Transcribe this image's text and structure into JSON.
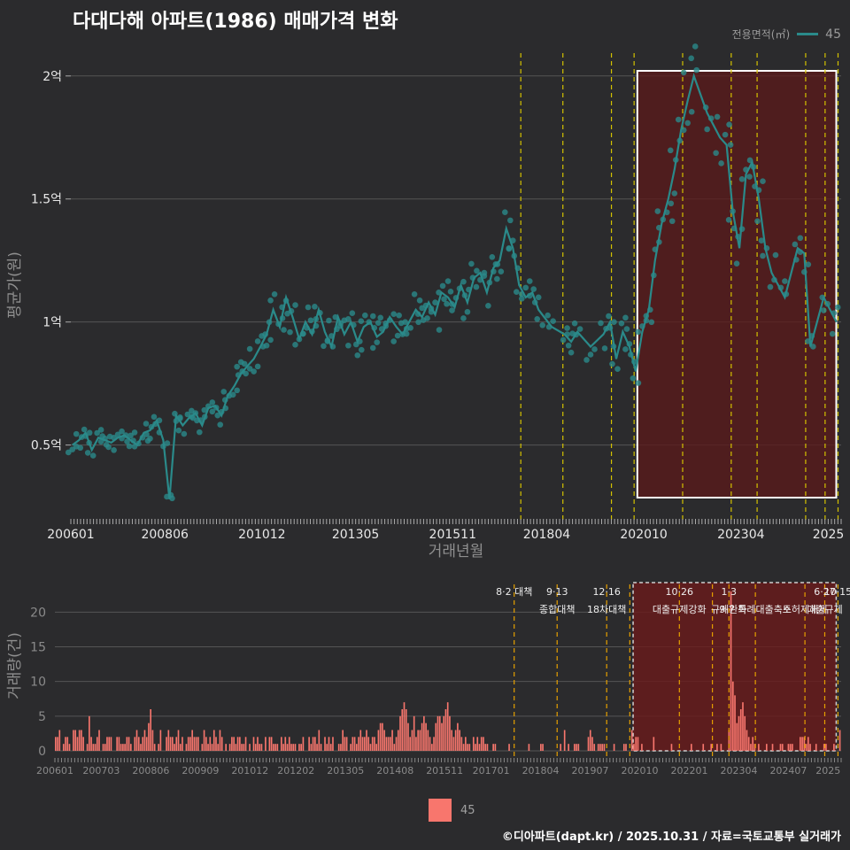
{
  "title": "다대다해 아파트(1986) 매매가격 변화",
  "source": "©디아파트(dapt.kr) / 2025.10.31 / 자료=국토교통부 실거래가",
  "colors": {
    "price": "#2a8a8a",
    "volume": "#f8766d",
    "policy": "#d4c200",
    "box_fill": "#5c1a1a",
    "bg": "#2b2b2d"
  },
  "legend_top": {
    "title": "전용면적(㎡)",
    "label": "45"
  },
  "legend_bottom": {
    "label": "45"
  },
  "chart_data": [
    {
      "type": "line",
      "title": "다대다해 아파트(1986) 매매가격 변화",
      "xlabel": "거래년월",
      "ylabel": "평균가(원)",
      "x_tick_labels": [
        "200601",
        "200806",
        "201012",
        "201305",
        "201511",
        "201804",
        "202010",
        "202304",
        "2025"
      ],
      "y_ticks": [
        {
          "value": 0.5,
          "label": "0.5억"
        },
        {
          "value": 1.0,
          "label": "1억"
        },
        {
          "value": 1.5,
          "label": "1.5억"
        },
        {
          "value": 2.0,
          "label": "2억"
        }
      ],
      "ylim": [
        0.2,
        2.1
      ],
      "x_range": [
        "2006-01",
        "2025-10"
      ],
      "unit": "억원",
      "highlight_period": [
        "2020-08",
        "2025-10"
      ],
      "policy_dates": [
        "2017-08",
        "2018-09",
        "2019-12",
        "2020-07",
        "2021-10",
        "2023-01",
        "2023-09",
        "2024-12",
        "2025-06",
        "2025-10"
      ],
      "series": [
        {
          "name": "45",
          "x": [
            2006.04,
            2006.21,
            2006.38,
            2006.54,
            2006.71,
            2006.88,
            2007.04,
            2007.21,
            2007.38,
            2007.54,
            2007.71,
            2007.88,
            2008.04,
            2008.21,
            2008.38,
            2008.54,
            2008.71,
            2008.88,
            2009.04,
            2009.21,
            2009.38,
            2009.54,
            2009.71,
            2009.88,
            2010.04,
            2010.21,
            2010.38,
            2010.54,
            2010.71,
            2010.88,
            2011.04,
            2011.21,
            2011.38,
            2011.54,
            2011.71,
            2011.88,
            2012.04,
            2012.21,
            2012.38,
            2012.54,
            2012.71,
            2012.88,
            2013.04,
            2013.21,
            2013.38,
            2013.54,
            2013.71,
            2013.88,
            2014.04,
            2014.21,
            2014.38,
            2014.54,
            2014.71,
            2014.88,
            2015.04,
            2015.21,
            2015.38,
            2015.54,
            2015.71,
            2015.88,
            2016.04,
            2016.21,
            2016.38,
            2016.54,
            2016.71,
            2016.88,
            2017.04,
            2017.21,
            2017.38,
            2017.54,
            2017.71,
            2017.88,
            2018.04,
            2018.38,
            2018.71,
            2018.88,
            2019.04,
            2019.38,
            2019.71,
            2019.88,
            2020.04,
            2020.21,
            2020.38,
            2020.54,
            2020.71,
            2020.88,
            2021.04,
            2021.21,
            2021.38,
            2021.54,
            2021.71,
            2021.88,
            2022.04,
            2022.38,
            2022.71,
            2022.88,
            2023.04,
            2023.21,
            2023.38,
            2023.54,
            2023.71,
            2023.88,
            2024.04,
            2024.38,
            2024.71,
            2024.88,
            2025.04,
            2025.38,
            2025.71
          ],
          "values": [
            0.5,
            0.52,
            0.55,
            0.48,
            0.53,
            0.52,
            0.51,
            0.53,
            0.54,
            0.52,
            0.5,
            0.55,
            0.56,
            0.6,
            0.52,
            0.28,
            0.62,
            0.58,
            0.61,
            0.63,
            0.58,
            0.65,
            0.66,
            0.62,
            0.7,
            0.74,
            0.79,
            0.82,
            0.85,
            0.9,
            0.95,
            1.05,
            0.98,
            1.1,
            1.02,
            0.93,
            1.0,
            0.95,
            1.05,
            0.96,
            0.9,
            1.02,
            0.95,
            1.0,
            0.92,
            0.98,
            1.0,
            0.94,
            0.96,
            1.02,
            0.98,
            0.95,
            1.0,
            1.05,
            1.02,
            1.08,
            1.03,
            1.12,
            1.1,
            1.06,
            1.15,
            1.08,
            1.18,
            1.2,
            1.12,
            1.22,
            1.25,
            1.38,
            1.3,
            1.15,
            1.1,
            1.12,
            1.05,
            0.98,
            0.95,
            0.92,
            0.96,
            0.9,
            0.95,
            1.0,
            0.85,
            0.96,
            0.9,
            0.8,
            0.96,
            1.05,
            1.25,
            1.4,
            1.5,
            1.62,
            1.78,
            1.9,
            2.0,
            1.85,
            1.75,
            1.72,
            1.45,
            1.3,
            1.6,
            1.65,
            1.5,
            1.3,
            1.2,
            1.1,
            1.3,
            1.28,
            0.9,
            1.1,
            1.0
          ]
        }
      ]
    },
    {
      "type": "bar",
      "xlabel": "",
      "ylabel": "거래량(건)",
      "x_tick_labels": [
        "200601",
        "200703",
        "200806",
        "200909",
        "201012",
        "201202",
        "201305",
        "201408",
        "201511",
        "201701",
        "201804",
        "201907",
        "202010",
        "202201",
        "202304",
        "202407",
        "2025"
      ],
      "y_ticks": [
        0,
        5,
        10,
        15,
        20
      ],
      "ylim": [
        0,
        24
      ],
      "x_range": [
        "2006-01",
        "2025-10"
      ],
      "highlight_period": [
        "2020-08",
        "2025-10"
      ],
      "policy_lines": [
        {
          "date": "2017-08",
          "label": "8·2 대책",
          "label2": ""
        },
        {
          "date": "2018-09",
          "label": "9·13",
          "label2": "종합대책"
        },
        {
          "date": "2019-12",
          "label": "12·16",
          "label2": "18차대책"
        },
        {
          "date": "2020-07",
          "label": "",
          "label2": ""
        },
        {
          "date": "2021-10",
          "label": "10·26",
          "label2": "대출규제강화"
        },
        {
          "date": "2022-08",
          "label": "",
          "label2": ""
        },
        {
          "date": "2023-01",
          "label": "1·3",
          "label2": "규제완화"
        },
        {
          "date": "2023-09",
          "label": "",
          "label2": "9·7 특례대출축소"
        },
        {
          "date": "2024-12",
          "label": "",
          "label2": "토허제해제"
        },
        {
          "date": "2025-06",
          "label": "6·27",
          "label2": "대출규제"
        },
        {
          "date": "2025-10",
          "label": "10·15",
          "label2": ""
        }
      ],
      "series": [
        {
          "name": "45",
          "values": [
            2,
            2,
            3,
            0,
            1,
            2,
            2,
            1,
            0,
            3,
            3,
            2,
            3,
            3,
            2,
            0,
            1,
            5,
            2,
            1,
            1,
            2,
            3,
            0,
            1,
            1,
            2,
            2,
            2,
            0,
            0,
            2,
            2,
            1,
            1,
            1,
            2,
            2,
            1,
            0,
            2,
            3,
            2,
            1,
            2,
            3,
            2,
            4,
            6,
            3,
            1,
            0,
            1,
            3,
            0,
            0,
            2,
            3,
            2,
            2,
            1,
            2,
            3,
            1,
            2,
            0,
            1,
            2,
            2,
            3,
            2,
            2,
            2,
            0,
            1,
            3,
            2,
            1,
            2,
            1,
            3,
            2,
            1,
            3,
            2,
            0,
            1,
            0,
            1,
            2,
            2,
            1,
            2,
            2,
            1,
            1,
            2,
            0,
            1,
            0,
            2,
            1,
            2,
            1,
            1,
            0,
            2,
            0,
            2,
            2,
            1,
            1,
            1,
            0,
            2,
            1,
            2,
            1,
            2,
            1,
            1,
            1,
            0,
            1,
            1,
            2,
            0,
            0,
            2,
            1,
            2,
            2,
            1,
            3,
            1,
            0,
            2,
            1,
            2,
            1,
            2,
            0,
            0,
            1,
            1,
            3,
            2,
            2,
            0,
            1,
            2,
            2,
            1,
            2,
            3,
            2,
            2,
            3,
            2,
            1,
            2,
            2,
            1,
            3,
            4,
            4,
            3,
            2,
            2,
            2,
            3,
            1,
            2,
            3,
            5,
            6,
            7,
            6,
            4,
            2,
            3,
            5,
            2,
            3,
            3,
            4,
            5,
            4,
            3,
            2,
            1,
            2,
            4,
            5,
            5,
            4,
            5,
            6,
            7,
            5,
            3,
            2,
            3,
            4,
            3,
            2,
            1,
            2,
            1,
            1,
            0,
            2,
            1,
            2,
            1,
            2,
            2,
            1,
            1,
            0,
            0,
            1,
            1,
            0,
            0,
            0,
            0,
            0,
            0,
            1,
            0,
            0,
            0,
            0,
            0,
            0,
            0,
            0,
            0,
            1,
            0,
            0,
            0,
            0,
            0,
            1,
            1,
            0,
            0,
            0,
            0,
            0,
            0,
            0,
            0,
            1,
            0,
            3,
            0,
            1,
            0,
            0,
            1,
            1,
            1,
            0,
            0,
            0,
            0,
            2,
            3,
            2,
            1,
            0,
            1,
            1,
            1,
            1,
            0,
            0,
            0,
            0,
            1,
            0,
            0,
            0,
            0,
            1,
            1,
            0,
            0,
            3,
            1,
            2,
            2,
            0,
            1,
            0,
            0,
            0,
            0,
            0,
            2,
            0,
            0,
            0,
            0,
            0,
            0,
            0,
            0,
            1,
            0,
            0,
            0,
            0,
            0,
            0,
            0,
            0,
            0,
            1,
            0,
            0,
            0,
            0,
            0,
            1,
            0,
            0,
            0,
            1,
            0,
            0,
            1,
            0,
            1,
            0,
            0,
            0,
            3,
            23,
            10,
            8,
            4,
            5,
            6,
            7,
            5,
            3,
            2,
            1,
            2,
            1,
            0,
            1,
            0,
            0,
            0,
            1,
            0,
            0,
            1,
            0,
            0,
            0,
            1,
            1,
            0,
            0,
            1,
            1,
            1,
            0,
            0,
            0,
            2,
            2,
            2,
            1,
            2,
            1,
            0,
            0,
            1,
            0,
            0,
            0,
            1,
            1,
            0,
            0,
            0,
            1,
            0,
            0,
            3
          ]
        }
      ]
    }
  ]
}
